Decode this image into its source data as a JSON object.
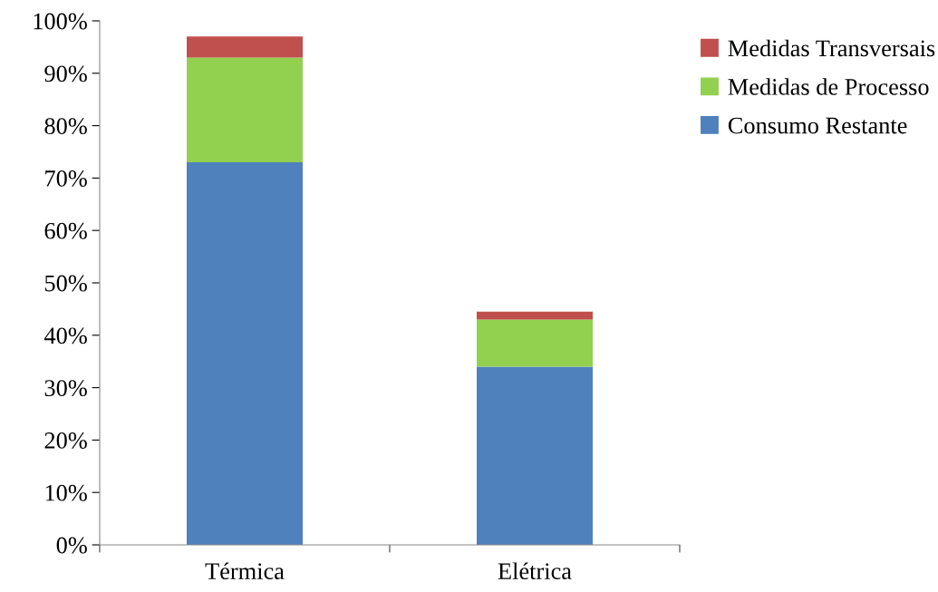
{
  "chart_data": {
    "type": "bar",
    "stacked": true,
    "categories": [
      "Térmica",
      "Elétrica"
    ],
    "series": [
      {
        "name": "Consumo Restante",
        "color": "#4f81bd",
        "values": [
          73,
          34
        ]
      },
      {
        "name": "Medidas de Processo",
        "color": "#92d050",
        "values": [
          20,
          9
        ]
      },
      {
        "name": "Medidas Transversais",
        "color": "#c0504d",
        "values": [
          4,
          1.5
        ]
      }
    ],
    "ylim": [
      0,
      100
    ],
    "yticks": [
      {
        "value": 0,
        "label": "0%"
      },
      {
        "value": 10,
        "label": "10%"
      },
      {
        "value": 20,
        "label": "20%"
      },
      {
        "value": 30,
        "label": "30%"
      },
      {
        "value": 40,
        "label": "40%"
      },
      {
        "value": 50,
        "label": "50%"
      },
      {
        "value": 60,
        "label": "60%"
      },
      {
        "value": 70,
        "label": "70%"
      },
      {
        "value": 80,
        "label": "80%"
      },
      {
        "value": 90,
        "label": "90%"
      },
      {
        "value": 100,
        "label": "100%"
      }
    ],
    "grid": false,
    "legend": "right"
  }
}
